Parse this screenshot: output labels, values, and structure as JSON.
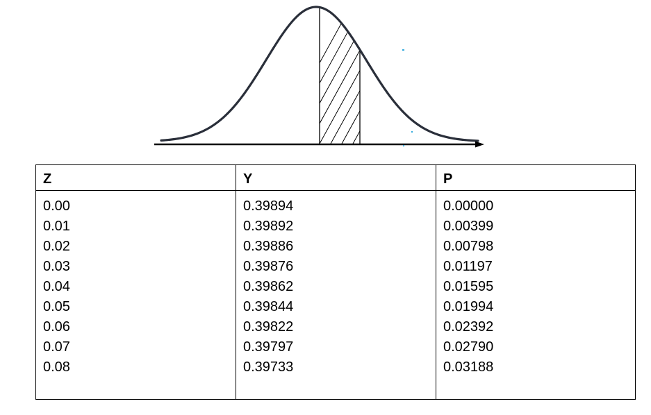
{
  "figure": {
    "description_icon": "normal-curve-shaded-area-icon",
    "colors": {
      "curve": "#2a2f3a",
      "axis": "#000000",
      "hatch": "#000000",
      "speck": "#33aadd"
    }
  },
  "table": {
    "headers": [
      "Z",
      "Y",
      "P"
    ],
    "columns": [
      [
        "0.00",
        "0.01",
        "0.02",
        "0.03",
        "0.04",
        "0.05",
        "0.06",
        "0.07",
        "0.08"
      ],
      [
        "0.39894",
        "0.39892",
        "0.39886",
        "0.39876",
        "0.39862",
        "0.39844",
        "0.39822",
        "0.39797",
        "0.39733"
      ],
      [
        "0.00000",
        "0.00399",
        "0.00798",
        "0.01197",
        "0.01595",
        "0.01994",
        "0.02392",
        "0.02790",
        "0.03188"
      ]
    ]
  }
}
